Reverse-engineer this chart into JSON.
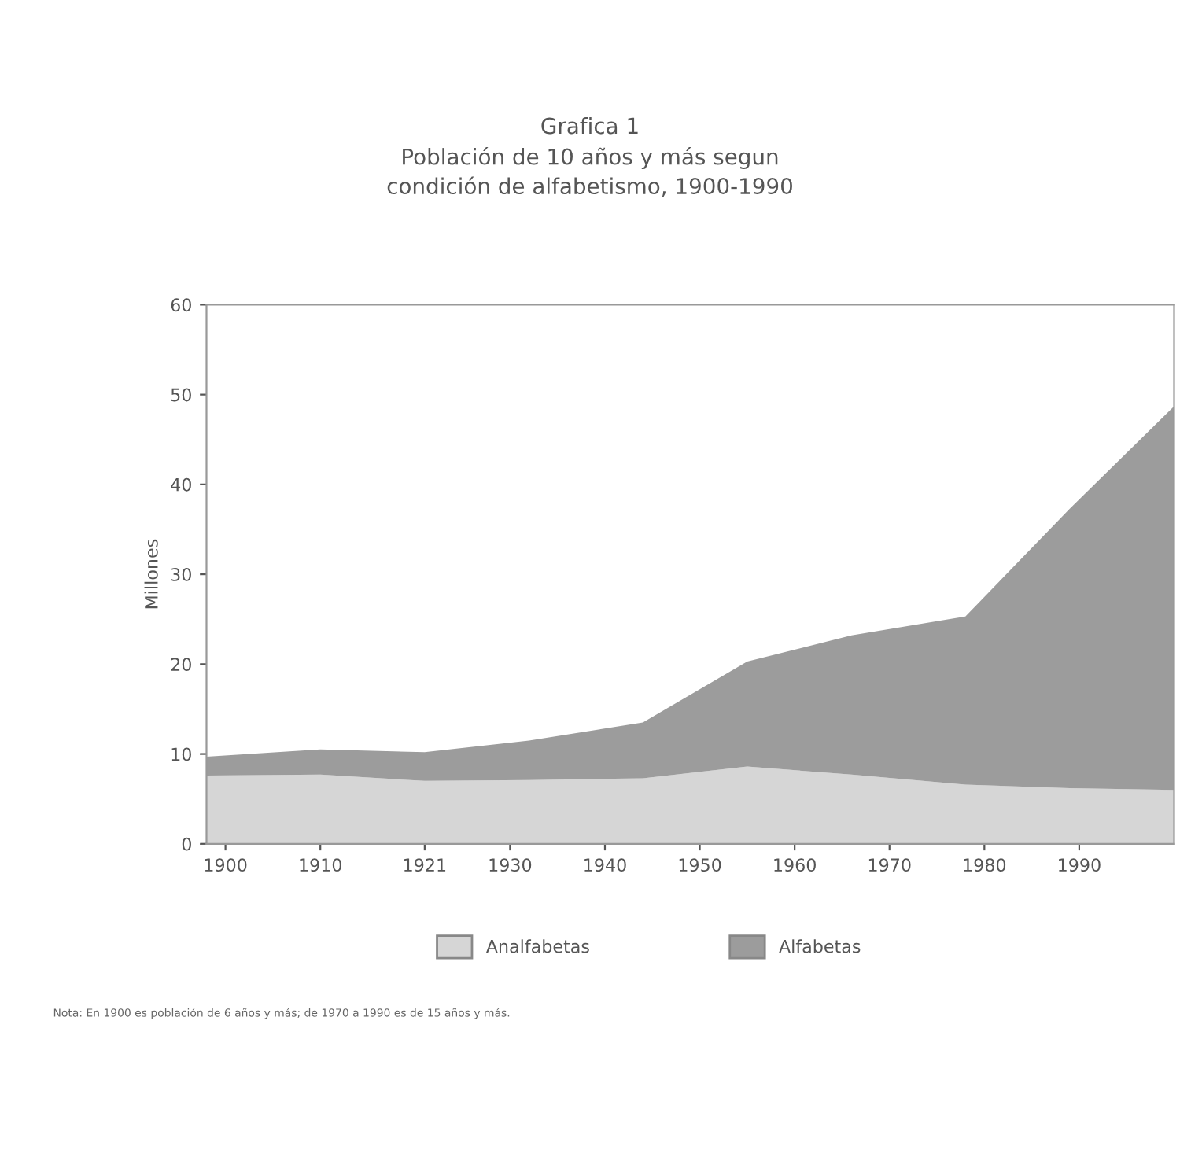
{
  "chart_data": {
    "type": "area",
    "title": "Grafica 1\nPoblación de 10 años y más segun\ncondición de alfabetismo, 1900-1990",
    "ylabel": "Millones",
    "x": [
      1898,
      1910,
      1921,
      1932,
      1944,
      1955,
      1966,
      1978,
      1989,
      2000
    ],
    "stacked": true,
    "series": [
      {
        "name": "Analfabetas",
        "color": "#d6d6d6",
        "values": [
          7.6,
          7.7,
          7.0,
          7.1,
          7.3,
          8.6,
          7.7,
          6.6,
          6.2,
          6.0
        ]
      },
      {
        "name": "Alfabetas",
        "color": "#9c9c9c",
        "values": [
          2.1,
          2.8,
          3.2,
          4.4,
          6.2,
          11.7,
          15.5,
          18.7,
          31.1,
          42.7
        ]
      }
    ],
    "xlim": [
      1898,
      2000
    ],
    "xticks": [
      1900,
      1910,
      1921,
      1930,
      1940,
      1950,
      1960,
      1970,
      1980,
      1990
    ],
    "ylim": [
      0,
      60
    ],
    "yticks": [
      0,
      10,
      20,
      30,
      40,
      50,
      60
    ],
    "grid": false,
    "legend": "bottom",
    "annotations": [
      "Nota: En 1900 es población de 6 años y más; de 1970 a 1990 es de 15 años y más."
    ]
  }
}
